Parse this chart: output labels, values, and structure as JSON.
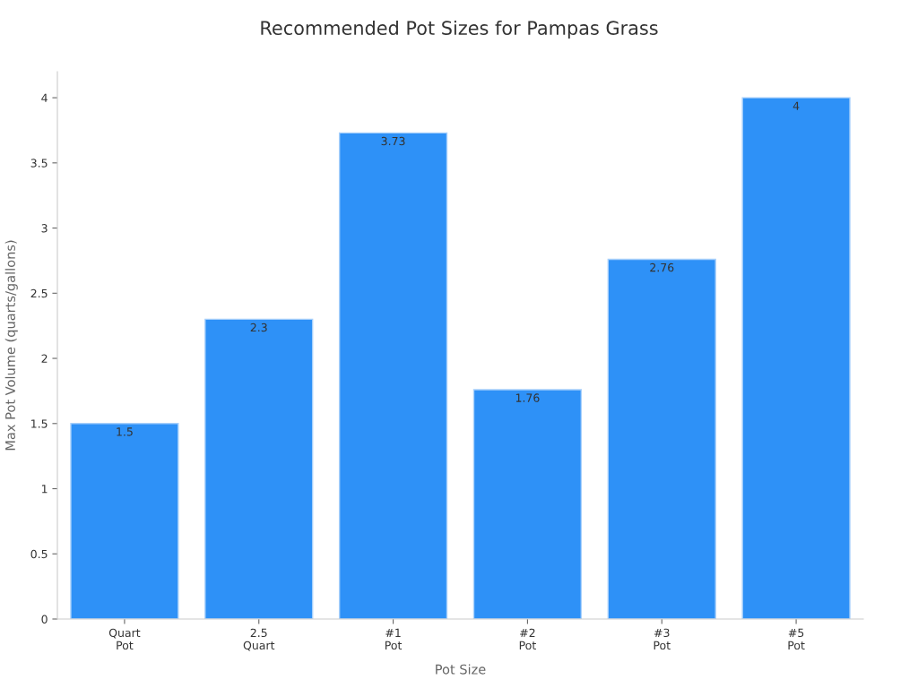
{
  "chart_data": {
    "type": "bar",
    "title": "Recommended Pot Sizes for Pampas Grass",
    "xlabel": "Pot Size",
    "ylabel": "Max Pot Volume (quarts/gallons)",
    "categories": [
      "Quart\nPot",
      "2.5\nQuart",
      "#1\nPot",
      "#2\nPot",
      "#3\nPot",
      "#5\nPot"
    ],
    "values": [
      1.5,
      2.3,
      3.73,
      1.76,
      2.76,
      4
    ],
    "color": "#2e91f7",
    "ylim": [
      0,
      4.2
    ],
    "yticks": [
      0,
      0.5,
      1,
      1.5,
      2,
      2.5,
      3,
      3.5,
      4
    ],
    "grid": false,
    "data_labels": true
  }
}
